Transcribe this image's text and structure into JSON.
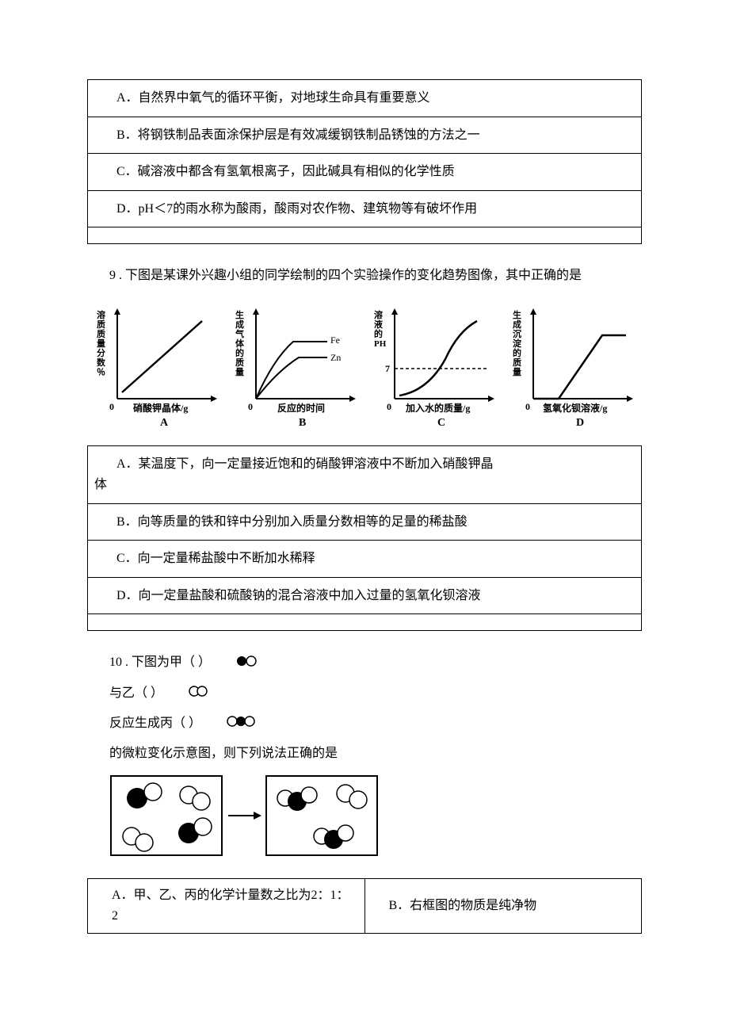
{
  "q8": {
    "options": {
      "A": "A．自然界中氧气的循环平衡，对地球生命具有重要意义",
      "B": "B．将钢铁制品表面涂保护层是有效减缓钢铁制品锈蚀的方法之一",
      "C": "C．碱溶液中都含有氢氧根离子，因此碱具有相似的化学性质",
      "D": "D．pH＜7的雨水称为酸雨，酸雨对农作物、建筑物等有破坏作用"
    }
  },
  "q9": {
    "stem": "9 . 下图是某课外兴趣小组的同学绘制的四个实验操作的变化趋势图像，其中正确的是",
    "charts": {
      "A": {
        "ylabel": "溶质质量分数％",
        "xlabel": "硝酸钾晶体/g",
        "caption": "A"
      },
      "B": {
        "ylabel": "生成气体的质量",
        "xlabel": "反应的时间",
        "caption": "B",
        "series": [
          "Fe",
          "Zn"
        ]
      },
      "C": {
        "ylabel": "溶液的PH",
        "xlabel": "加入水的质量/g",
        "caption": "C",
        "dashed_y": "7"
      },
      "D": {
        "ylabel": "生成沉淀的质量",
        "xlabel": "氢氧化钡溶液/g",
        "caption": "D"
      }
    },
    "options": {
      "A": "A．某温度下，向一定量接近饱和的硝酸钾溶液中不断加入硝酸钾晶体",
      "B": "B．向等质量的铁和锌中分别加入质量分数相等的足量的稀盐酸",
      "C": "C．向一定量稀盐酸中不断加水稀释",
      "D": "D．向一定量盐酸和硫酸钠的混合溶液中加入过量的氢氧化钡溶液"
    }
  },
  "q10": {
    "line1_prefix": "10 . 下图为甲（ ）",
    "line2": "与乙（ ）",
    "line3": "反应生成丙（ ）",
    "line4": "的微粒变化示意图，则下列说法正确的是",
    "options": {
      "A": "A．甲、乙、丙的化学计量数之比为2：1： 2",
      "B": "B．右框图的物质是纯净物"
    }
  },
  "colors": {
    "text": "#000000",
    "border": "#000000",
    "bg": "#ffffff"
  }
}
